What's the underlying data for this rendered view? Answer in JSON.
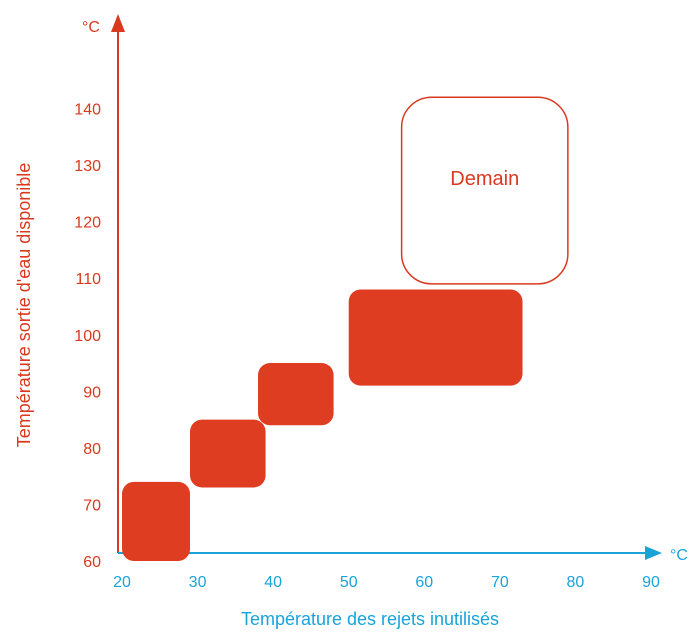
{
  "chart_data": {
    "type": "range-blocks",
    "xlabel": "Température des rejets inutilisés",
    "ylabel": "Température sortie d'eau disponible",
    "x_unit": "°C",
    "y_unit": "°C",
    "xlim": [
      20,
      90
    ],
    "ylim": [
      60,
      140
    ],
    "x_ticks": [
      "20",
      "30",
      "40",
      "50",
      "60",
      "70",
      "80",
      "90"
    ],
    "y_ticks": [
      "60",
      "70",
      "80",
      "90",
      "100",
      "110",
      "120",
      "130",
      "140"
    ],
    "grid": false,
    "blocks": [
      {
        "x_range": [
          20,
          29
        ],
        "y_range": [
          60,
          74
        ],
        "filled": true
      },
      {
        "x_range": [
          29,
          39
        ],
        "y_range": [
          73,
          85
        ],
        "filled": true
      },
      {
        "x_range": [
          38,
          48
        ],
        "y_range": [
          84,
          95
        ],
        "filled": true
      },
      {
        "x_range": [
          50,
          73
        ],
        "y_range": [
          91,
          108
        ],
        "filled": true
      },
      {
        "x_range": [
          57,
          79
        ],
        "y_range": [
          109,
          142
        ],
        "filled": false,
        "label": "Demain"
      }
    ],
    "colors": {
      "y_axis": "#d9391f",
      "x_axis": "#1aa3d9",
      "block_fill": "#de3d22",
      "outline": "#d9391f"
    }
  }
}
